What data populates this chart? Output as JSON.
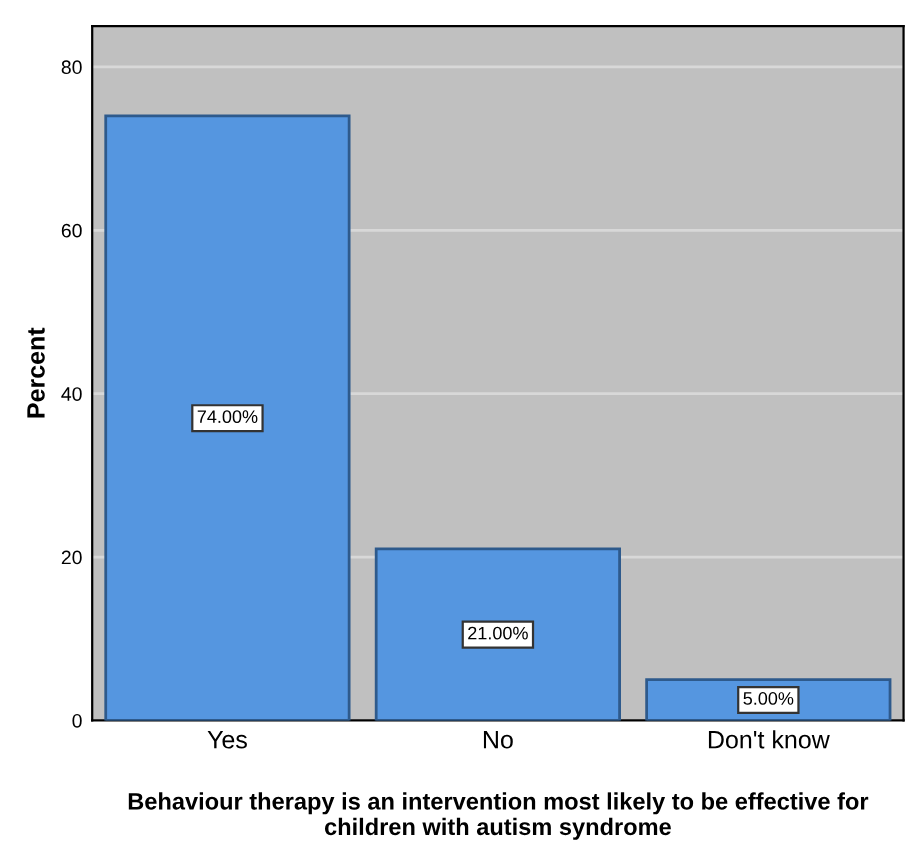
{
  "chart_data": {
    "type": "bar",
    "xlabel": "Behaviour therapy is an intervention most likely to be effective for\nchildren with autism syndrome",
    "ylabel": "Percent",
    "categories": [
      "Yes",
      "No",
      "Don't know"
    ],
    "values": [
      74,
      21,
      5
    ],
    "value_labels": [
      "74.00%",
      "21.00%",
      "5.00%"
    ],
    "color": "#5596e0",
    "ylim": [
      0,
      85
    ],
    "yticks": [
      0,
      20,
      40,
      60,
      80
    ],
    "grid": "y"
  }
}
